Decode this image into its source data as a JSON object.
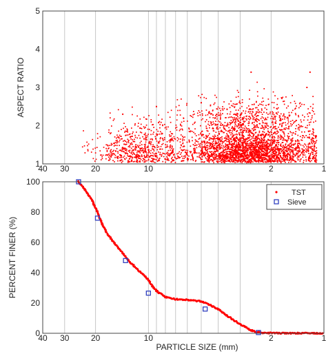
{
  "chart_data": [
    {
      "type": "scatter",
      "xlabel": "",
      "ylabel": "ASPECT RATIO",
      "xscale": "log",
      "xreversed": true,
      "xlim": [
        40,
        1
      ],
      "ylim": [
        1,
        5
      ],
      "x_ticks": [
        40,
        30,
        20,
        10,
        2,
        1
      ],
      "y_ticks": [
        1,
        2,
        3,
        4,
        5
      ],
      "color": "#ff0000",
      "marker": "dot",
      "grid": "vertical",
      "series": [
        {
          "name": "",
          "clusters": [
            {
              "x_range": [
                1.1,
                7.0
              ],
              "center_x": 2.6,
              "y_mode": 1.3,
              "y_max": 2.6,
              "density": "very high"
            },
            {
              "x_range": [
                7.0,
                24.0
              ],
              "center_x": 11.0,
              "y_mode": 1.3,
              "y_max": 2.1,
              "density": "medium"
            }
          ],
          "outliers": [
            {
              "x": 2.6,
              "y": 3.4
            },
            {
              "x": 1.2,
              "y": 3.4
            },
            {
              "x": 1.25,
              "y": 3.0
            },
            {
              "x": 5.0,
              "y": 2.6
            },
            {
              "x": 9.0,
              "y": 2.5
            },
            {
              "x": 14.0,
              "y": 2.3
            }
          ]
        }
      ]
    },
    {
      "type": "line",
      "xlabel": "PARTICLE SIZE (mm)",
      "ylabel": "PERCENT FINER (%)",
      "xscale": "log",
      "xreversed": true,
      "xlim": [
        40,
        1
      ],
      "ylim": [
        0,
        100
      ],
      "x_ticks": [
        40,
        30,
        20,
        10,
        2,
        1
      ],
      "y_ticks": [
        0,
        20,
        40,
        60,
        80,
        100
      ],
      "grid": "vertical",
      "legend_position": "top-right",
      "series": [
        {
          "name": "TST",
          "style": "dots",
          "color": "#ff0000",
          "x": [
            25,
            23,
            21,
            19.5,
            18,
            17,
            16,
            15,
            14,
            13,
            12,
            11,
            10.5,
            10,
            9.5,
            9,
            8,
            7,
            6,
            5,
            4.5,
            4,
            3.6,
            3.2,
            2.9,
            2.6,
            2.4,
            2.2,
            2.0,
            1.8,
            1.5,
            1.2,
            1.0
          ],
          "y": [
            100,
            95,
            88,
            80,
            70,
            65,
            61,
            57,
            53,
            48,
            44,
            40,
            38,
            35,
            31,
            28,
            24,
            22.5,
            22,
            21,
            19,
            16,
            12,
            8,
            5,
            2,
            0.6,
            0.3,
            0.2,
            0.1,
            0.05,
            0.02,
            0
          ]
        },
        {
          "name": "Sieve",
          "style": "open-squares",
          "color": "#3040c0",
          "x": [
            25,
            19.5,
            13.5,
            10,
            4.75,
            2.36
          ],
          "y": [
            100,
            76,
            48,
            26.5,
            16,
            0.5
          ]
        }
      ]
    }
  ],
  "axes": {
    "top": {
      "ylabel": "ASPECT RATIO",
      "x_tick_labels": [
        "40",
        "30",
        "20",
        "10",
        "2",
        "1"
      ],
      "y_tick_labels": [
        "1",
        "2",
        "3",
        "4",
        "5"
      ]
    },
    "bottom": {
      "xlabel": "PARTICLE SIZE (mm)",
      "ylabel": "PERCENT FINER (%)",
      "x_tick_labels": [
        "40",
        "30",
        "20",
        "10",
        "2",
        "1"
      ],
      "y_tick_labels": [
        "0",
        "20",
        "40",
        "60",
        "80",
        "100"
      ]
    }
  },
  "legend": {
    "tst_label": "TST",
    "sieve_label": "Sieve"
  },
  "colors": {
    "tst": "#ff0000",
    "sieve": "#3040c0",
    "grid": "#b8b8b8",
    "axis": "#444444"
  }
}
